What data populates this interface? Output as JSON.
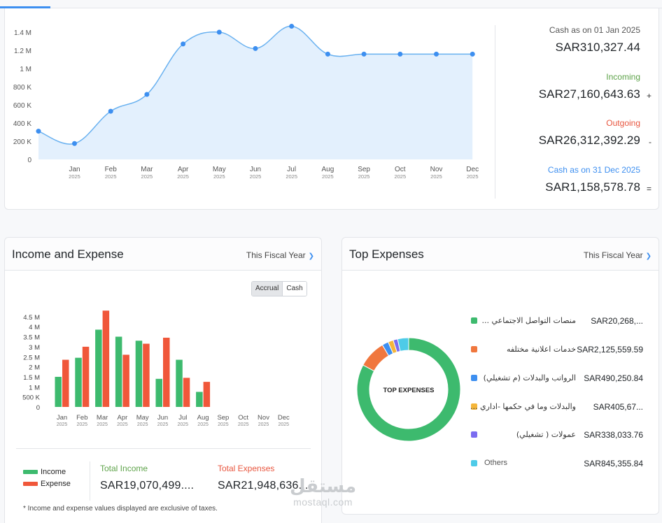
{
  "cashflow": {
    "chart_data": {
      "type": "area",
      "x": [
        "Jan 2025",
        "Feb 2025",
        "Mar 2025",
        "Apr 2025",
        "May 2025",
        "Jun 2025",
        "Jul 2025",
        "Aug 2025",
        "Sep 2025",
        "Oct 2025",
        "Nov 2025",
        "Dec 2025"
      ],
      "x_labels": [
        {
          "month": "Jan",
          "year": "2025"
        },
        {
          "month": "Feb",
          "year": "2025"
        },
        {
          "month": "Mar",
          "year": "2025"
        },
        {
          "month": "Apr",
          "year": "2025"
        },
        {
          "month": "May",
          "year": "2025"
        },
        {
          "month": "Jun",
          "year": "2025"
        },
        {
          "month": "Jul",
          "year": "2025"
        },
        {
          "month": "Aug",
          "year": "2025"
        },
        {
          "month": "Sep",
          "year": "2025"
        },
        {
          "month": "Oct",
          "year": "2025"
        },
        {
          "month": "Nov",
          "year": "2025"
        },
        {
          "month": "Dec",
          "year": "2025"
        }
      ],
      "start_value": 310327,
      "values": [
        175000,
        530000,
        715000,
        1270000,
        1400000,
        1220000,
        1465000,
        1158578,
        1158578,
        1158578,
        1158578,
        1158578
      ],
      "y_ticks": [
        "0",
        "200 K",
        "400 K",
        "600 K",
        "800 K",
        "1 M",
        "1.2 M",
        "1.4 M"
      ],
      "ylim": [
        0,
        1500000
      ],
      "fill_color": "#e3f0fd",
      "line_color": "#69b1f0",
      "point_color": "#3d8ff0"
    },
    "summary": {
      "opening_label": "Cash as on 01 Jan 2025",
      "opening_value": "SAR310,327.44",
      "incoming_label": "Incoming",
      "incoming_value": "SAR27,160,643.63",
      "incoming_sign": "+",
      "outgoing_label": "Outgoing",
      "outgoing_value": "SAR26,312,392.29",
      "outgoing_sign": "-",
      "closing_label": "Cash as on 31 Dec 2025",
      "closing_value": "SAR1,158,578.78",
      "closing_sign": "="
    }
  },
  "income_expense": {
    "title": "Income and Expense",
    "period": "This Fiscal Year",
    "toggle": {
      "accrual": "Accrual",
      "cash": "Cash"
    },
    "chart_data": {
      "type": "bar",
      "categories": [
        "Jan",
        "Feb",
        "Mar",
        "Apr",
        "May",
        "Jun",
        "Jul",
        "Aug",
        "Sep",
        "Oct",
        "Nov",
        "Dec"
      ],
      "year_labels": [
        "2025",
        "2025",
        "2025",
        "2025",
        "2025",
        "2025",
        "2025",
        "2025",
        "2025",
        "2025",
        "2025",
        "2025"
      ],
      "series": [
        {
          "name": "Income",
          "color": "#3dba6e",
          "values": [
            1500000,
            2450000,
            3850000,
            3500000,
            3300000,
            1400000,
            2350000,
            750000,
            0,
            0,
            0,
            0
          ]
        },
        {
          "name": "Expense",
          "color": "#f0573a",
          "values": [
            2350000,
            3000000,
            4800000,
            2600000,
            3150000,
            3450000,
            1450000,
            1250000,
            0,
            0,
            0,
            0
          ]
        }
      ],
      "y_ticks": [
        "0",
        "500 K",
        "1 M",
        "1.5 M",
        "2 M",
        "2.5 M",
        "3 M",
        "3.5 M",
        "4 M",
        "4.5 M"
      ],
      "ylim": [
        0,
        5000000
      ]
    },
    "legend": {
      "income": "Income",
      "expense": "Expense",
      "income_color": "#3dba6e",
      "expense_color": "#f0573a"
    },
    "total_income_label": "Total Income",
    "total_income_value": "SAR19,070,499....",
    "total_expense_label": "Total Expenses",
    "total_expense_value": "SAR21,948,636....",
    "footnote": "* Income and expense values displayed are exclusive of taxes."
  },
  "top_expenses": {
    "title": "Top Expenses",
    "period": "This Fiscal Year",
    "donut_center": "TOP EXPENSES",
    "chart_data": {
      "type": "pie",
      "slices": [
        {
          "name": "منصات التواصل الاجتماعي ...",
          "value_label": "SAR20,268,...",
          "color": "#3dba6e"
        },
        {
          "name": "خدمات اعلانية مختلفه",
          "value_label": "SAR2,125,559.59",
          "color": "#f0773e"
        },
        {
          "name": "الرواتب والبدلات (م تشغيلي)",
          "value_label": "SAR490,250.84",
          "color": "#3d8ff0"
        },
        {
          "name": "والبدلات وما في حكمها -اداري ...",
          "value_label": "SAR405,67...",
          "color": "#f5b63a"
        },
        {
          "name": "عمولات ( تشغيلي)",
          "value_label": "SAR338,033.76",
          "color": "#7b6cf0"
        },
        {
          "name": "Others",
          "value_label": "SAR845,355.84",
          "color": "#4ecbe8"
        }
      ],
      "values": [
        20268000,
        2125559.59,
        490250.84,
        405670,
        338033.76,
        845355.84
      ]
    }
  },
  "watermark": {
    "arabic": "مستقل",
    "latin": "mostaql.com"
  }
}
